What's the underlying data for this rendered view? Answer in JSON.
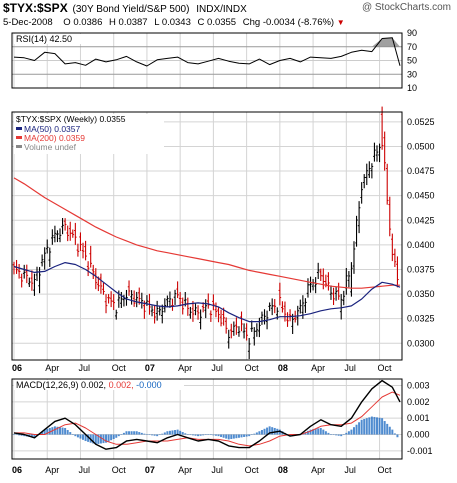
{
  "header": {
    "symbol": "$TYX:$SPX",
    "description": "(30Y Bond Yield/S&P 500)",
    "exchange": "INDX/INDX",
    "watermark": "@ StockCharts.com",
    "date": "5-Dec-2008",
    "open_label": "O",
    "open": "0.0386",
    "high_label": "H",
    "high": "0.0387",
    "low_label": "L",
    "low": "0.0343",
    "close_label": "C",
    "close": "0.0355",
    "chg_label": "Chg",
    "chg": "-0.0034 (-8.76%)"
  },
  "colors": {
    "price_up": "#000000",
    "price_down": "#cc0000",
    "ma50": "#1a237e",
    "ma200": "#e53935",
    "macd_hist": "#1565c0",
    "rsi_fill": "#888888",
    "grid": "#d4d4d4",
    "down_arrow": "#cc0000"
  },
  "chart_data": [
    {
      "type": "line",
      "title": "RSI(14) 42.50",
      "label": "RSI(14) 42.50",
      "y_ticks": [
        "90",
        "70",
        "50",
        "30",
        "10"
      ],
      "ylim": [
        10,
        90
      ],
      "overbought": 70,
      "oversold": 30,
      "x": [
        0,
        4,
        8,
        12,
        16,
        20,
        24,
        28,
        32,
        36,
        40,
        44,
        48,
        52,
        56,
        60,
        64,
        68,
        72,
        76,
        80,
        84,
        88,
        92,
        96,
        100,
        104,
        108,
        112,
        116,
        120,
        124,
        128,
        132,
        136,
        140,
        144,
        148,
        151
      ],
      "values": [
        55,
        54,
        50,
        62,
        60,
        45,
        47,
        43,
        52,
        48,
        51,
        56,
        48,
        42,
        51,
        53,
        55,
        47,
        45,
        49,
        53,
        49,
        46,
        45,
        52,
        44,
        50,
        53,
        48,
        55,
        54,
        53,
        56,
        62,
        65,
        63,
        82,
        83,
        42.5
      ]
    },
    {
      "type": "line",
      "title": "$TYX:$SPX (Weekly) 0.0355",
      "legend_title": "$TYX:$SPX (Weekly) 0.0355",
      "legend": [
        {
          "name": "MA(50) 0.0357",
          "color": "#1a237e"
        },
        {
          "name": "MA(200) 0.0359",
          "color": "#e53935"
        },
        {
          "name": "Volume undef",
          "color": "#888888"
        }
      ],
      "y_ticks": [
        "0.0525",
        "0.0500",
        "0.0475",
        "0.0450",
        "0.0425",
        "0.0400",
        "0.0375",
        "0.0350",
        "0.0325",
        "0.0300"
      ],
      "ylim": [
        0.0283,
        0.0535
      ],
      "x_ticks": [
        "06",
        "Apr",
        "Jul",
        "Oct",
        "07",
        "Apr",
        "Jul",
        "Oct",
        "08",
        "Apr",
        "Jul",
        "Oct"
      ],
      "x": [
        0,
        4,
        8,
        12,
        16,
        20,
        24,
        28,
        32,
        36,
        40,
        44,
        48,
        52,
        56,
        60,
        64,
        68,
        72,
        76,
        80,
        84,
        88,
        92,
        96,
        100,
        104,
        108,
        112,
        116,
        120,
        124,
        128,
        132,
        136,
        140,
        144,
        148,
        151
      ],
      "values": [
        0.0375,
        0.0368,
        0.0362,
        0.039,
        0.041,
        0.0418,
        0.0405,
        0.0388,
        0.0365,
        0.0345,
        0.0338,
        0.035,
        0.0345,
        0.0338,
        0.033,
        0.0342,
        0.0348,
        0.0335,
        0.033,
        0.0338,
        0.033,
        0.031,
        0.0318,
        0.0305,
        0.032,
        0.0335,
        0.034,
        0.0322,
        0.0335,
        0.036,
        0.037,
        0.0352,
        0.0345,
        0.0378,
        0.046,
        0.0485,
        0.0505,
        0.039,
        0.0355
      ],
      "ma50": [
        0.0378,
        0.0375,
        0.0372,
        0.0373,
        0.0378,
        0.0382,
        0.038,
        0.0375,
        0.0368,
        0.036,
        0.0352,
        0.0345,
        0.0342,
        0.034,
        0.0338,
        0.0337,
        0.0338,
        0.034,
        0.0341,
        0.034,
        0.0337,
        0.0331,
        0.0326,
        0.0322,
        0.0322,
        0.0324,
        0.0327,
        0.0327,
        0.0328,
        0.033,
        0.0333,
        0.0335,
        0.0336,
        0.0338,
        0.0345,
        0.0355,
        0.0362,
        0.036,
        0.0357
      ],
      "ma200": [
        0.0468,
        0.0462,
        0.0455,
        0.0448,
        0.0442,
        0.0436,
        0.043,
        0.0424,
        0.0418,
        0.0413,
        0.0408,
        0.0404,
        0.04,
        0.0397,
        0.0394,
        0.0392,
        0.039,
        0.0388,
        0.0386,
        0.0384,
        0.0382,
        0.038,
        0.0377,
        0.0374,
        0.0372,
        0.037,
        0.0368,
        0.0366,
        0.0364,
        0.0362,
        0.036,
        0.0358,
        0.0357,
        0.0356,
        0.0356,
        0.0357,
        0.0358,
        0.0359,
        0.0359
      ]
    },
    {
      "type": "line",
      "title": "MACD(12,26,9) 0.002, 0.002, -0.000",
      "label_name": "MACD(12,26,9)",
      "label_v1": "0.002,",
      "label_v2": "0.002,",
      "label_v3": "-0.000",
      "y_ticks": [
        "0.003",
        "0.002",
        "0.001",
        "0.000",
        "-0.001"
      ],
      "ylim": [
        -0.0015,
        0.0034
      ],
      "x_ticks": [
        "06",
        "Apr",
        "Jul",
        "Oct",
        "07",
        "Apr",
        "Jul",
        "Oct",
        "08",
        "Apr",
        "Jul",
        "Oct"
      ],
      "x": [
        0,
        4,
        8,
        12,
        16,
        20,
        24,
        28,
        32,
        36,
        40,
        44,
        48,
        52,
        56,
        60,
        64,
        68,
        72,
        76,
        80,
        84,
        88,
        92,
        96,
        100,
        104,
        108,
        112,
        116,
        120,
        124,
        128,
        132,
        136,
        140,
        144,
        148,
        151
      ],
      "macd": [
        0.0001,
        0.0,
        -0.0002,
        0.0003,
        0.0008,
        0.001,
        0.0006,
        0.0,
        -0.0006,
        -0.0009,
        -0.0008,
        -0.0004,
        -0.0003,
        -0.0004,
        -0.0005,
        -0.0002,
        0.0,
        -0.0002,
        -0.0004,
        -0.0003,
        -0.0004,
        -0.0007,
        -0.0008,
        -0.0008,
        -0.0004,
        0.0001,
        0.0002,
        -0.0001,
        0.0,
        0.0005,
        0.0009,
        0.0006,
        0.0005,
        0.001,
        0.002,
        0.0028,
        0.0033,
        0.0029,
        0.002
      ],
      "signal": [
        0.0001,
        0.0001,
        0.0,
        0.0,
        0.0003,
        0.0006,
        0.0007,
        0.0004,
        0.0,
        -0.0004,
        -0.0006,
        -0.0006,
        -0.0005,
        -0.0004,
        -0.0004,
        -0.0004,
        -0.0003,
        -0.0002,
        -0.0003,
        -0.0003,
        -0.0003,
        -0.0004,
        -0.0006,
        -0.0007,
        -0.0006,
        -0.0004,
        -0.0001,
        0.0,
        0.0,
        0.0002,
        0.0005,
        0.0006,
        0.0006,
        0.0007,
        0.0011,
        0.0017,
        0.0023,
        0.0026,
        0.0024
      ],
      "histogram": [
        0.0,
        -0.0001,
        -0.0002,
        0.0003,
        0.0005,
        0.0004,
        -0.0001,
        -0.0004,
        -0.0006,
        -0.0005,
        -0.0002,
        0.0002,
        0.0002,
        0.0,
        -0.0001,
        0.0002,
        0.0003,
        0.0,
        -0.0001,
        0.0,
        -0.0001,
        -0.0003,
        -0.0002,
        -0.0001,
        0.0002,
        0.0005,
        0.0003,
        -0.0001,
        0.0,
        0.0003,
        0.0004,
        0.0,
        -0.0001,
        0.0003,
        0.0009,
        0.0011,
        0.001,
        0.0003,
        -0.0004
      ]
    }
  ]
}
